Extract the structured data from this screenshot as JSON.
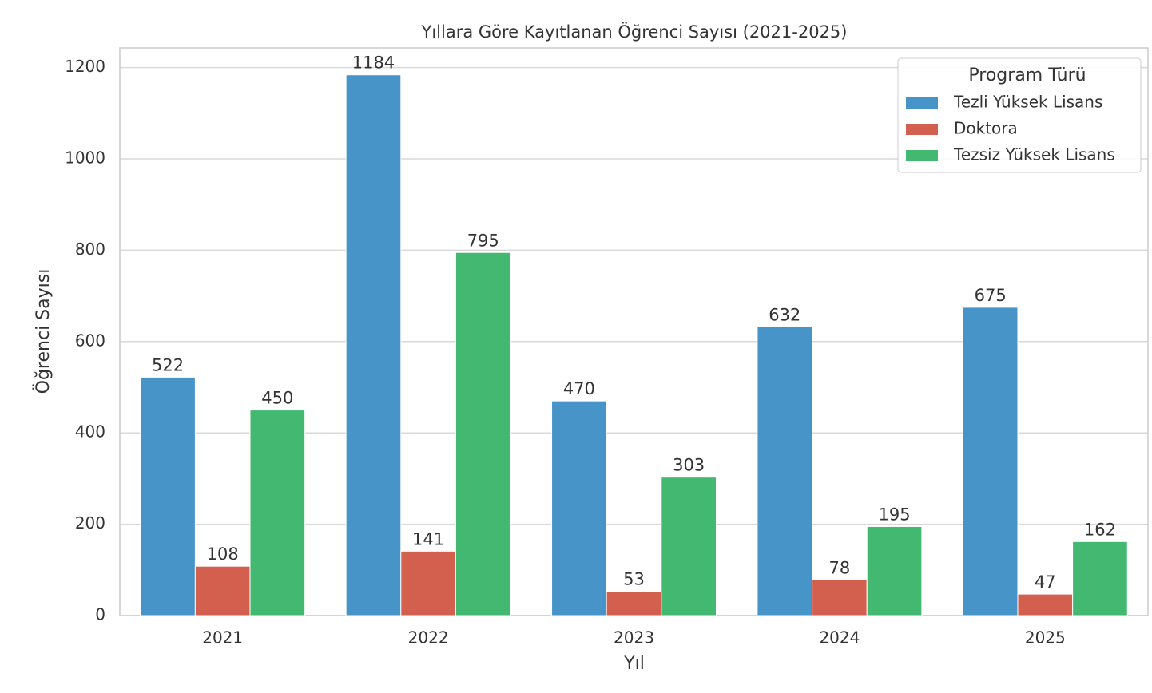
{
  "chart_data": {
    "type": "bar",
    "title": "Yıllara Göre Kayıtlanan Öğrenci Sayısı (2021-2025)",
    "x_label": "Yıl",
    "y_label": "Öğrenci Sayısı",
    "categories": [
      "2021",
      "2022",
      "2023",
      "2024",
      "2025"
    ],
    "series": [
      {
        "name": "Tezli Yüksek Lisans",
        "color": "#4794c8",
        "values": [
          522,
          1184,
          470,
          632,
          675
        ]
      },
      {
        "name": "Doktora",
        "color": "#d35f4f",
        "values": [
          108,
          141,
          53,
          78,
          47
        ]
      },
      {
        "name": "Tezsiz Yüksek Lisans",
        "color": "#42b870",
        "values": [
          450,
          795,
          303,
          195,
          162
        ]
      }
    ],
    "ylim": [
      0,
      1243
    ],
    "yticks": [
      0,
      200,
      400,
      600,
      800,
      1000,
      1200
    ],
    "grid": true,
    "legend": {
      "title": "Program Türü",
      "position": "upper right"
    }
  }
}
